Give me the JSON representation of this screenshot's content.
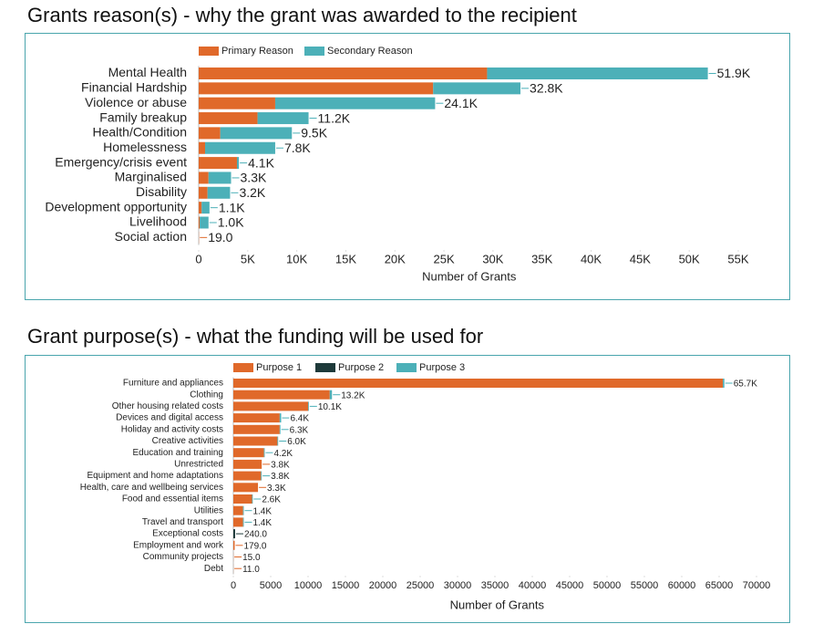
{
  "chart_data": [
    {
      "type": "stacked-bar-horizontal",
      "title": "Grants reason(s) - why the grant was awarded to the recipient",
      "categories": [
        "Mental Health",
        "Financial Hardship",
        "Violence or abuse",
        "Family breakup",
        "Health/Condition",
        "Homelessness",
        "Emergency/crisis event",
        "Marginalised",
        "Disability",
        "Development opportunity",
        "Livelihood",
        "Social action"
      ],
      "series": [
        {
          "name": "Primary Reason",
          "color": "#e0692a",
          "values": [
            29400,
            23900,
            7800,
            6000,
            2200,
            650,
            3900,
            1000,
            900,
            300,
            100,
            19
          ]
        },
        {
          "name": "Secondary Reason",
          "color": "#4cb0b8",
          "values": [
            22500,
            8900,
            16300,
            5200,
            7300,
            7150,
            200,
            2300,
            2300,
            800,
            900,
            0
          ]
        }
      ],
      "totals": [
        51900,
        32800,
        24100,
        11200,
        9500,
        7800,
        4100,
        3300,
        3200,
        1100,
        1000,
        19
      ],
      "total_labels": [
        "51.9K",
        "32.8K",
        "24.1K",
        "11.2K",
        "9.5K",
        "7.8K",
        "4.1K",
        "3.3K",
        "3.2K",
        "1.1K",
        "1.0K",
        "19.0"
      ],
      "xlim": [
        0,
        57000
      ],
      "xticks": [
        0,
        {
          "value": 5000,
          "label": "5K"
        },
        {
          "value": 10000,
          "label": "10K"
        },
        {
          "value": 15000,
          "label": "15K"
        },
        {
          "value": 20000,
          "label": "20K"
        },
        {
          "value": 25000,
          "label": "25K"
        },
        {
          "value": 30000,
          "label": "30K"
        },
        {
          "value": 35000,
          "label": "35K"
        },
        {
          "value": 40000,
          "label": "40K"
        },
        {
          "value": 45000,
          "label": "45K"
        },
        {
          "value": 50000,
          "label": "50K"
        },
        {
          "value": 55000,
          "label": "55K"
        }
      ],
      "x_label": "Number of Grants",
      "legend": "top-left",
      "grid": false
    },
    {
      "type": "stacked-bar-horizontal",
      "title": "Grant purpose(s) - what the funding will be used for",
      "categories": [
        "Furniture and appliances",
        "Clothing",
        "Other housing related costs",
        "Devices and digital access",
        "Holiday and activity costs",
        "Creative activities",
        "Education and training",
        "Unrestricted",
        "Equipment and home adaptations",
        "Health, care and wellbeing services",
        "Food and essential items",
        "Utilities",
        "Travel and transport",
        "Exceptional costs",
        "Employment and work",
        "Community projects",
        "Debt"
      ],
      "series": [
        {
          "name": "Purpose 1",
          "color": "#e0692a",
          "values": [
            65500,
            12900,
            10000,
            6200,
            6200,
            5900,
            4100,
            3800,
            3700,
            3300,
            2500,
            1300,
            1300,
            0,
            179,
            15,
            11
          ]
        },
        {
          "name": "Purpose 2",
          "color": "#1e3a3a",
          "values": [
            0,
            0,
            0,
            0,
            0,
            0,
            0,
            0,
            0,
            0,
            0,
            0,
            0,
            240,
            0,
            0,
            0
          ]
        },
        {
          "name": "Purpose 3",
          "color": "#4cb0b8",
          "values": [
            200,
            300,
            100,
            200,
            100,
            100,
            100,
            0,
            100,
            0,
            100,
            100,
            100,
            0,
            0,
            0,
            0
          ]
        }
      ],
      "totals": [
        65700,
        13200,
        10100,
        6400,
        6300,
        6000,
        4200,
        3800,
        3800,
        3300,
        2600,
        1400,
        1400,
        240,
        179,
        15,
        11
      ],
      "total_labels": [
        "65.7K",
        "13.2K",
        "10.1K",
        "6.4K",
        "6.3K",
        "6.0K",
        "4.2K",
        "3.8K",
        "3.8K",
        "3.3K",
        "2.6K",
        "1.4K",
        "1.4K",
        "240.0",
        "179.0",
        "15.0",
        "11.0"
      ],
      "xlim": [
        0,
        73000
      ],
      "xticks": [
        0,
        5000,
        10000,
        15000,
        20000,
        25000,
        30000,
        35000,
        40000,
        45000,
        50000,
        55000,
        60000,
        65000,
        70000
      ],
      "x_label": "Number of Grants",
      "legend": "top-left",
      "grid": false
    }
  ]
}
